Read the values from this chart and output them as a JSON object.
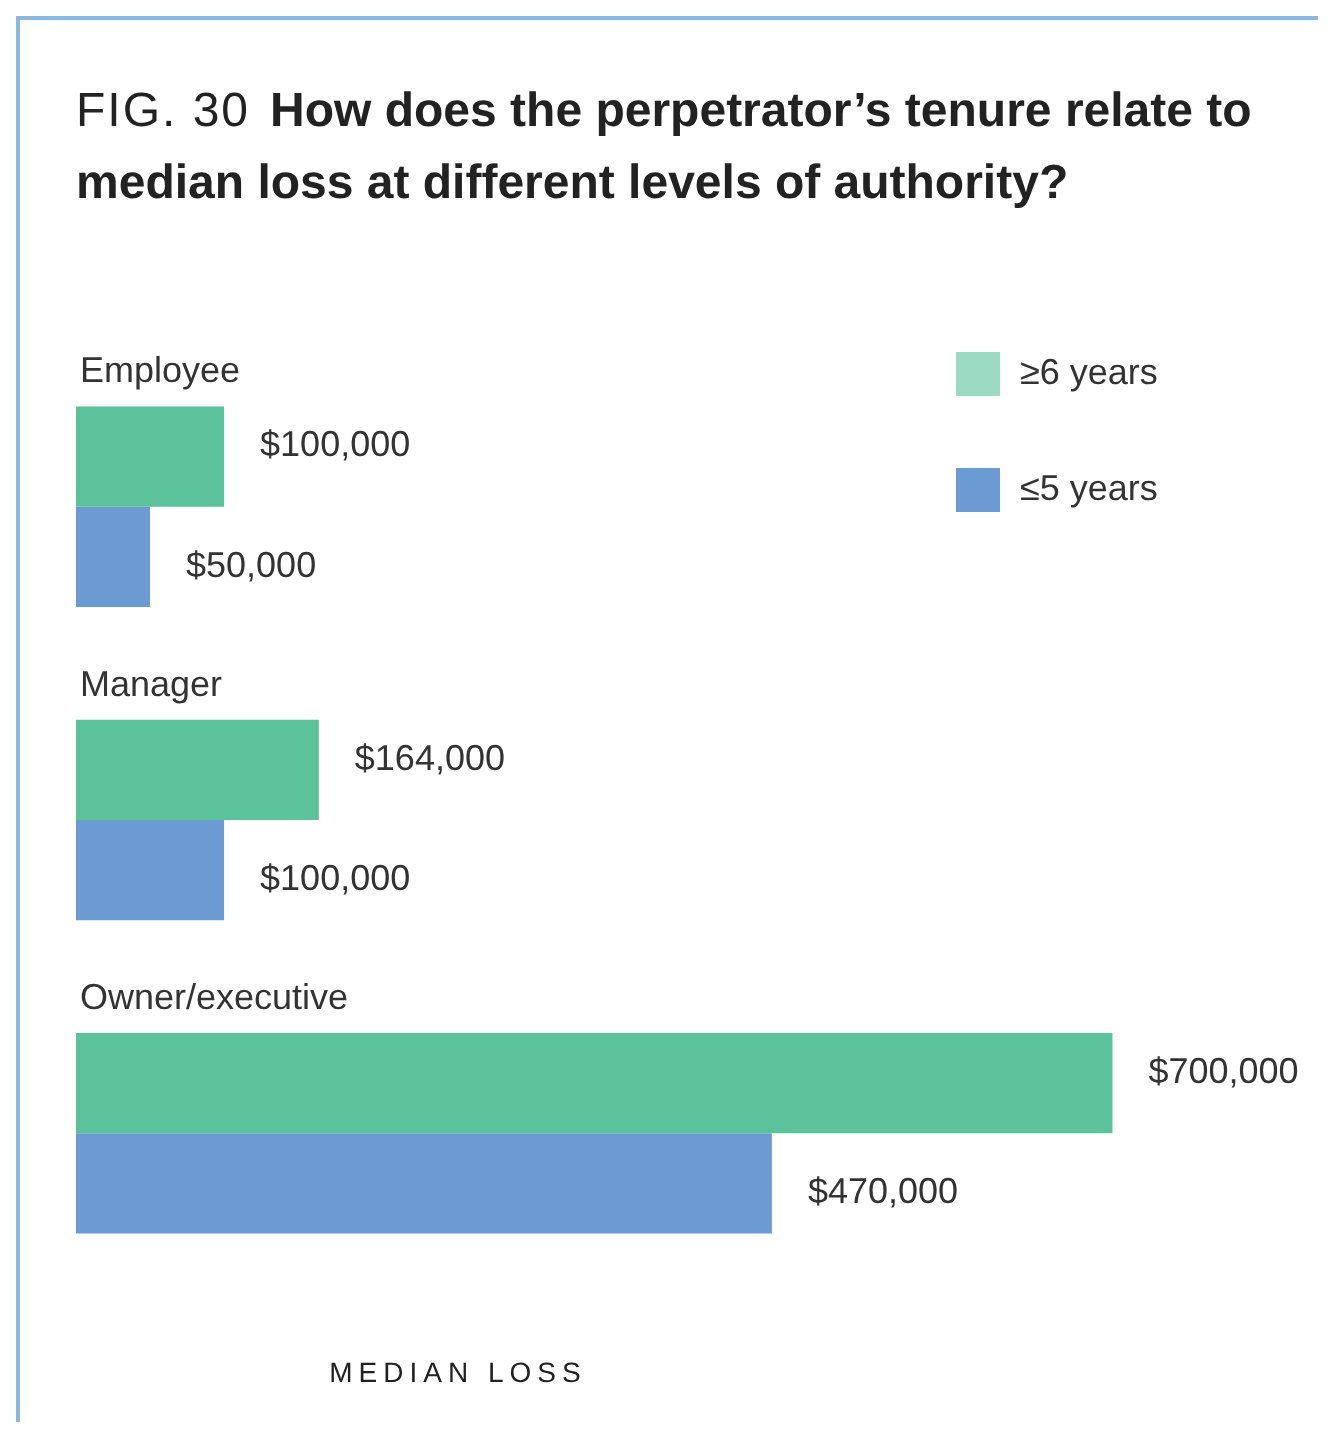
{
  "chart_data": {
    "type": "bar",
    "orientation": "horizontal",
    "annotations": [
      "FIG. 30"
    ],
    "title": "How does the perpetrator’s tenure relate to median loss at different levels of authority?",
    "categories": [
      "Employee",
      "Manager",
      "Owner/executive"
    ],
    "series": [
      {
        "name": "≥6 years",
        "color": "#5bc29c",
        "values": [
          100000,
          164000,
          700000
        ],
        "value_labels": [
          "$100,000",
          "$164,000",
          "$700,000"
        ]
      },
      {
        "name": "≤5 years",
        "color": "#6b9bd2",
        "values": [
          50000,
          100000,
          470000
        ],
        "value_labels": [
          "$50,000",
          "$100,000",
          "$470,000"
        ]
      }
    ],
    "xlabel": "MEDIAN LOSS",
    "legend": "top right"
  }
}
